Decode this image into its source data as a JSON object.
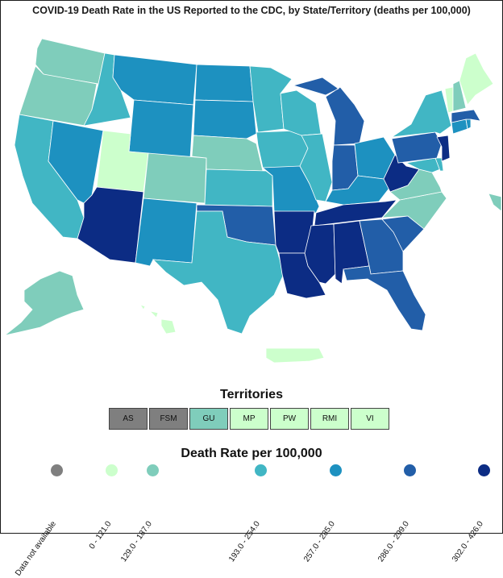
{
  "title": "COVID-19 Death Rate in the US Reported to the CDC, by State/Territory (deaths per 100,000)",
  "colors": {
    "na": "#7f7f7f",
    "c1": "#ccffcc",
    "c2": "#7fcdbb",
    "c3": "#41b6c4",
    "c4": "#1d91c0",
    "c5": "#225ea8",
    "c6": "#0c2c84"
  },
  "territories": {
    "heading": "Territories",
    "items": [
      {
        "label": "AS",
        "color": "#7f7f7f"
      },
      {
        "label": "FSM",
        "color": "#7f7f7f"
      },
      {
        "label": "GU",
        "color": "#7fcdbb"
      },
      {
        "label": "MP",
        "color": "#ccffcc"
      },
      {
        "label": "PW",
        "color": "#ccffcc"
      },
      {
        "label": "RMI",
        "color": "#ccffcc"
      },
      {
        "label": "VI",
        "color": "#ccffcc"
      }
    ]
  },
  "legend": {
    "heading": "Death Rate per 100,000",
    "items": [
      {
        "label": "Data not available",
        "color": "#7f7f7f"
      },
      {
        "label": "0 - 121.0",
        "color": "#ccffcc"
      },
      {
        "label": "129.0 - 187.0",
        "color": "#7fcdbb"
      },
      {
        "label": "193.0 - 254.0",
        "color": "#41b6c4"
      },
      {
        "label": "257.0 - 285.0",
        "color": "#1d91c0"
      },
      {
        "label": "286.0 - 299.0",
        "color": "#225ea8"
      },
      {
        "label": "302.0 - 426.0",
        "color": "#0c2c84"
      }
    ]
  }
}
